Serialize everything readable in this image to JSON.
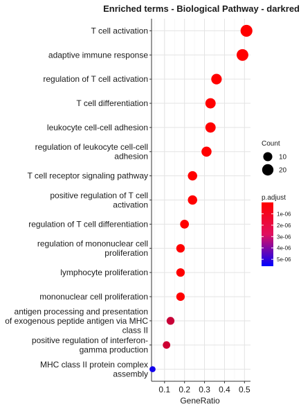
{
  "chart_data": {
    "type": "scatter",
    "title": "Enriched terms - Biological Pathway - darkred",
    "xlabel": "GeneRatio",
    "ylabel": "",
    "xlim": [
      0.035,
      0.53
    ],
    "x_ticks": [
      0.1,
      0.2,
      0.3,
      0.4,
      0.5
    ],
    "x_tick_labels": [
      "0.1",
      "0.2",
      "0.3",
      "0.4",
      "0.5"
    ],
    "grid": true,
    "legend_position": "right",
    "terms": [
      {
        "label": [
          "T cell activation"
        ],
        "gene_ratio": 0.51,
        "count": 23,
        "p_adjust": 1e-08
      },
      {
        "label": [
          "adaptive immune response"
        ],
        "gene_ratio": 0.49,
        "count": 22,
        "p_adjust": 1e-08
      },
      {
        "label": [
          "regulation of T cell activation"
        ],
        "gene_ratio": 0.36,
        "count": 16,
        "p_adjust": 1e-08
      },
      {
        "label": [
          "T cell differentiation"
        ],
        "gene_ratio": 0.33,
        "count": 15,
        "p_adjust": 1e-08
      },
      {
        "label": [
          "leukocyte cell-cell adhesion"
        ],
        "gene_ratio": 0.33,
        "count": 15,
        "p_adjust": 1e-08
      },
      {
        "label": [
          "regulation of leukocyte cell-cell",
          "adhesion"
        ],
        "gene_ratio": 0.31,
        "count": 14,
        "p_adjust": 1e-08
      },
      {
        "label": [
          "T cell receptor signaling pathway"
        ],
        "gene_ratio": 0.24,
        "count": 11,
        "p_adjust": 1e-08
      },
      {
        "label": [
          "positive regulation of T cell",
          "activation"
        ],
        "gene_ratio": 0.24,
        "count": 11,
        "p_adjust": 1e-08
      },
      {
        "label": [
          "regulation of T cell differentiation"
        ],
        "gene_ratio": 0.2,
        "count": 9,
        "p_adjust": 1e-08
      },
      {
        "label": [
          "regulation of mononuclear cell",
          "proliferation"
        ],
        "gene_ratio": 0.18,
        "count": 8,
        "p_adjust": 1e-08
      },
      {
        "label": [
          "lymphocyte proliferation"
        ],
        "gene_ratio": 0.18,
        "count": 8,
        "p_adjust": 1e-08
      },
      {
        "label": [
          "mononuclear cell proliferation"
        ],
        "gene_ratio": 0.18,
        "count": 8,
        "p_adjust": 1e-08
      },
      {
        "label": [
          "antigen processing and presentation",
          "of exogenous peptide antigen via MHC",
          "class II"
        ],
        "gene_ratio": 0.13,
        "count": 6,
        "p_adjust": 1.2e-06
      },
      {
        "label": [
          "positive regulation of interferon-",
          "gamma production"
        ],
        "gene_ratio": 0.11,
        "count": 5,
        "p_adjust": 1.1e-06
      },
      {
        "label": [
          "MHC class II protein complex",
          "assembly"
        ],
        "gene_ratio": 0.04,
        "count": 2,
        "p_adjust": 5.2e-06
      }
    ],
    "size_legend": {
      "title": "Count",
      "entries": [
        {
          "label": "10",
          "value": 10
        },
        {
          "label": "20",
          "value": 20
        }
      ]
    },
    "color_legend": {
      "title": "p.adjust",
      "low_color": "#ff0000",
      "high_color": "#0000ff",
      "range": [
        0,
        5.6e-06
      ],
      "ticks": [
        {
          "label": "1e-06",
          "value": 1e-06
        },
        {
          "label": "2e-06",
          "value": 2e-06
        },
        {
          "label": "3e-06",
          "value": 3e-06
        },
        {
          "label": "4e-06",
          "value": 4e-06
        },
        {
          "label": "5e-06",
          "value": 5e-06
        }
      ]
    }
  }
}
